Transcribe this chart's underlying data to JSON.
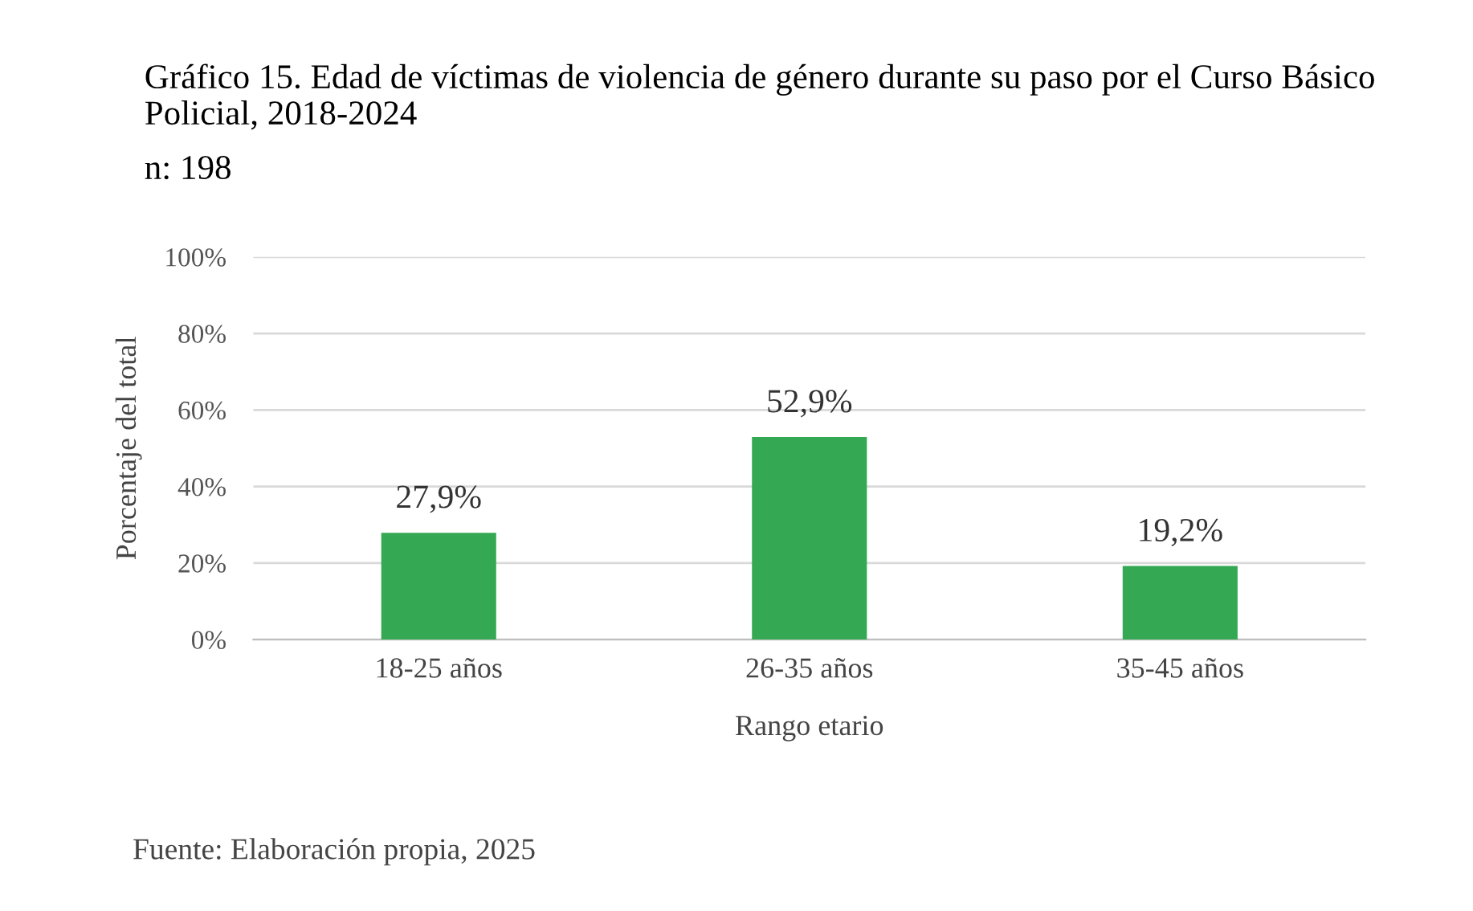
{
  "chart_data": {
    "type": "bar",
    "title": "Gráfico 15. Edad de víctimas de violencia de género durante su paso por el Curso Básico Policial, 2018-2024",
    "subtitle": "n: 198",
    "xlabel": "Rango etario",
    "ylabel": "Porcentaje del total",
    "categories": [
      "18-25 años",
      "26-35 años",
      "35-45 años"
    ],
    "values": [
      27.9,
      52.9,
      19.2
    ],
    "value_labels": [
      "27,9%",
      "52,9%",
      "19,2%"
    ],
    "color": "#34a853",
    "ylim": [
      0,
      100
    ],
    "yticks": [
      {
        "value": 0,
        "label": "0%"
      },
      {
        "value": 20,
        "label": "20%"
      },
      {
        "value": 40,
        "label": "40%"
      },
      {
        "value": 60,
        "label": "60%"
      },
      {
        "value": 80,
        "label": "80%"
      },
      {
        "value": 100,
        "label": "100%"
      }
    ],
    "grid": "y",
    "annotations": [
      "Fuente: Elaboración propia, 2025"
    ]
  }
}
